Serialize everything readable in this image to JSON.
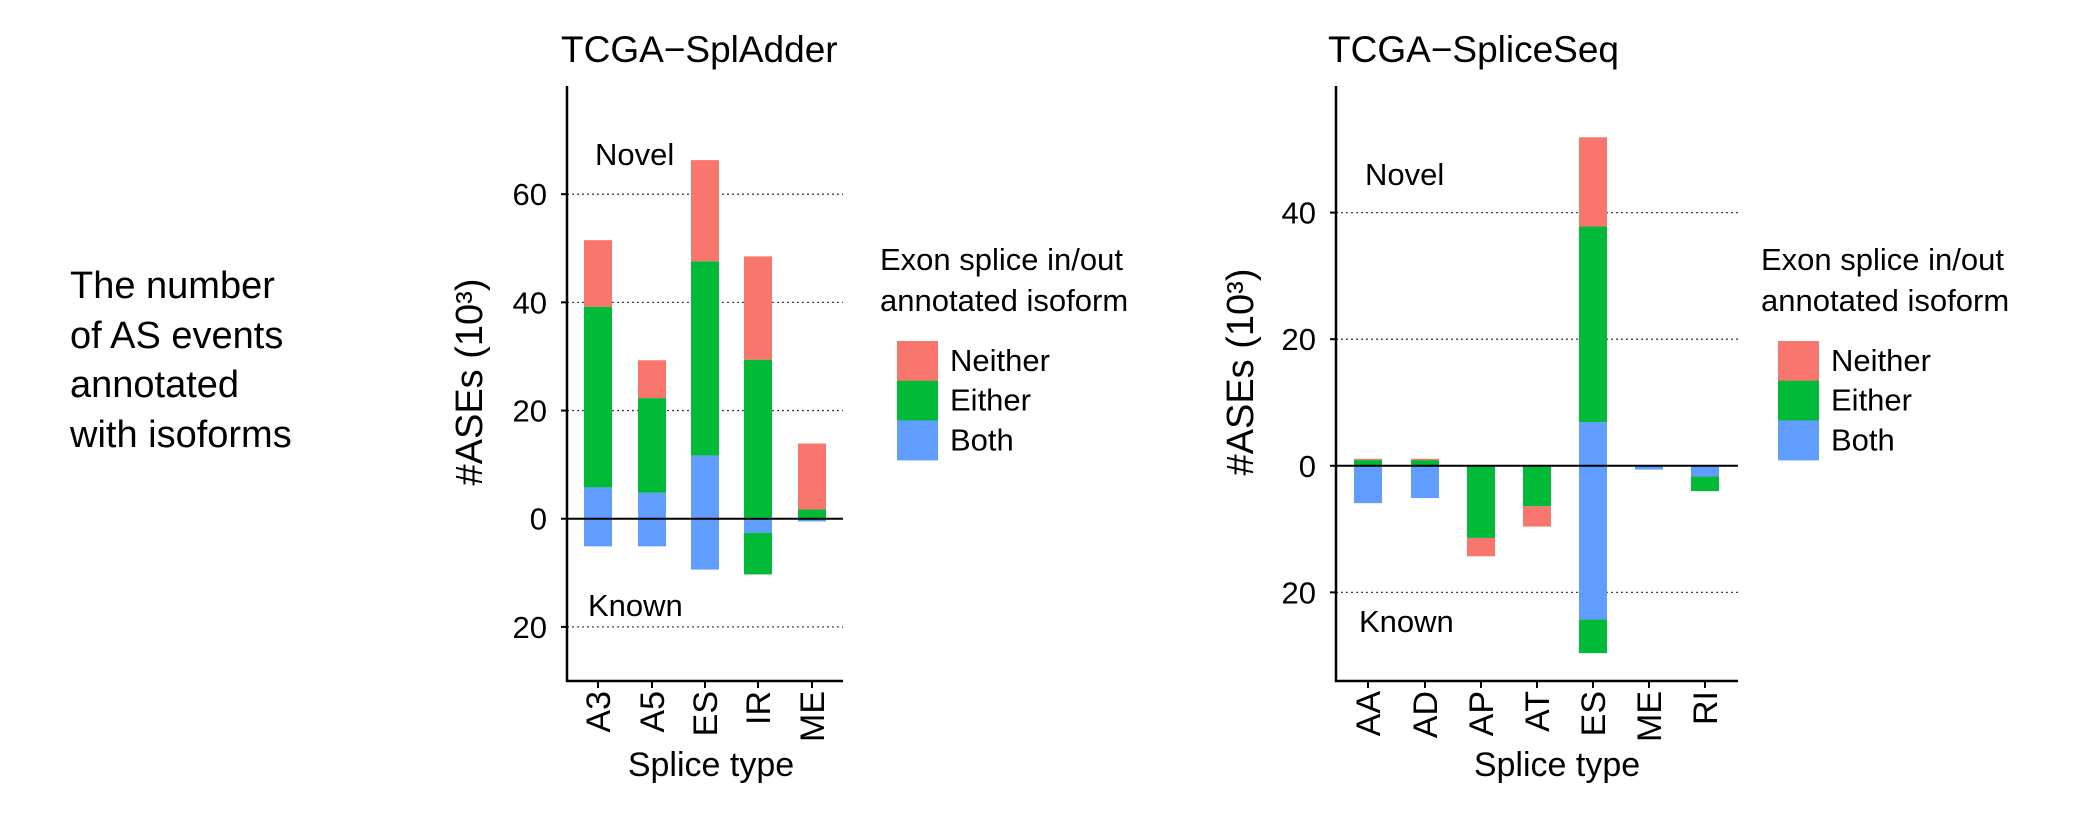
{
  "side_note": {
    "lines": [
      "The number",
      "of AS events",
      "annotated",
      "with isoforms"
    ]
  },
  "colors": {
    "Neither": "#F8766D",
    "Either": "#00BA38",
    "Both": "#619CFF"
  },
  "chart_data": [
    {
      "type": "bar",
      "stacked": true,
      "diverging": true,
      "title": "TCGA−SplAdder",
      "xlabel": "Splice type",
      "ylabel": "#ASEs (10³)",
      "ylim": [
        -30,
        80
      ],
      "yticks": [
        {
          "value": 60,
          "label": "60"
        },
        {
          "value": 40,
          "label": "40"
        },
        {
          "value": 20,
          "label": "20"
        },
        {
          "value": 0,
          "label": "0"
        },
        {
          "value": -20,
          "label": "20"
        }
      ],
      "grid": "dotted horizontal",
      "annotations": {
        "upper": "Novel",
        "lower": "Known"
      },
      "categories": [
        "A3",
        "A5",
        "ES",
        "IR",
        "ME"
      ],
      "series_order": [
        "Both",
        "Either",
        "Neither"
      ],
      "novel": {
        "Both": [
          5.8,
          4.8,
          11.7,
          0.2,
          0.1
        ],
        "Either": [
          33.4,
          17.5,
          35.9,
          29.2,
          1.6
        ],
        "Neither": [
          12.3,
          7.0,
          18.7,
          19.1,
          12.2
        ]
      },
      "known": {
        "Both": [
          5.1,
          5.1,
          9.4,
          2.6,
          0.5
        ],
        "Either": [
          0,
          0,
          0,
          7.7,
          0
        ],
        "Neither": [
          0,
          0,
          0,
          0,
          0
        ]
      },
      "legend": {
        "title_lines": [
          "Exon splice in/out",
          "annotated isoform"
        ],
        "entries": [
          "Neither",
          "Either",
          "Both"
        ],
        "placement": "right"
      }
    },
    {
      "type": "bar",
      "stacked": true,
      "diverging": true,
      "title": "TCGA−SpliceSeq",
      "xlabel": "Splice type",
      "ylabel": "#ASEs (10³)",
      "ylim": [
        -34,
        60
      ],
      "yticks": [
        {
          "value": 40,
          "label": "40"
        },
        {
          "value": 20,
          "label": "20"
        },
        {
          "value": 0,
          "label": "0"
        },
        {
          "value": -20,
          "label": "20"
        }
      ],
      "grid": "dotted horizontal",
      "annotations": {
        "upper": "Novel",
        "lower": "Known"
      },
      "categories": [
        "AA",
        "AD",
        "AP",
        "AT",
        "ES",
        "ME",
        "RI"
      ],
      "series_order": [
        "Both",
        "Either",
        "Neither"
      ],
      "novel": {
        "Both": [
          0,
          0,
          0,
          0,
          6.9,
          0,
          0
        ],
        "Either": [
          0.9,
          0.9,
          0,
          0,
          30.9,
          0,
          0
        ],
        "Neither": [
          0.2,
          0.2,
          0,
          0,
          14.1,
          0,
          0
        ]
      },
      "known": {
        "Both": [
          5.9,
          5.1,
          0,
          0,
          24.3,
          0.6,
          1.7
        ],
        "Either": [
          0,
          0,
          11.4,
          6.4,
          5.3,
          0,
          2.3
        ],
        "Neither": [
          0,
          0,
          2.9,
          3.2,
          0,
          0,
          0
        ]
      },
      "legend": {
        "title_lines": [
          "Exon splice in/out",
          "annotated isoform"
        ],
        "entries": [
          "Neither",
          "Either",
          "Both"
        ],
        "placement": "right"
      }
    }
  ]
}
